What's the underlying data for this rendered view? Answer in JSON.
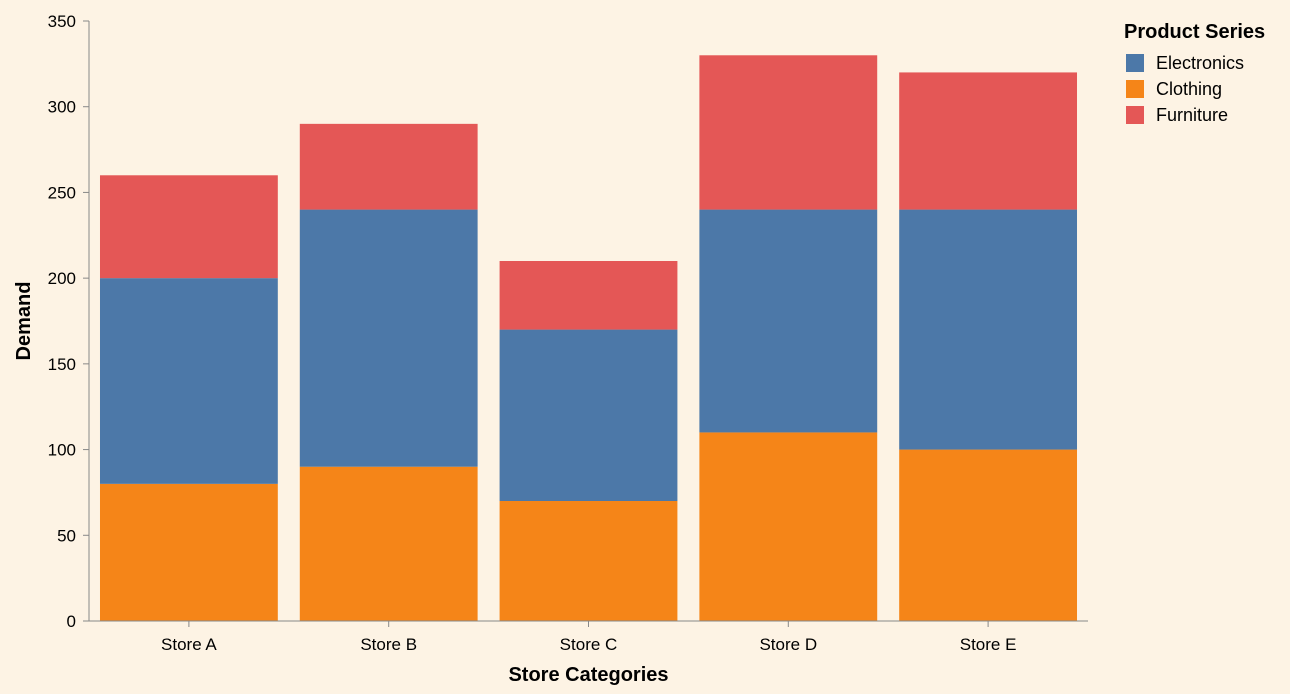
{
  "chart_data": {
    "type": "bar",
    "stacked": true,
    "categories": [
      "Store A",
      "Store B",
      "Store C",
      "Store D",
      "Store E"
    ],
    "series": [
      {
        "name": "Clothing",
        "color": "#f58518",
        "values": [
          80,
          90,
          70,
          110,
          100
        ]
      },
      {
        "name": "Electronics",
        "color": "#4c78a8",
        "values": [
          120,
          150,
          100,
          130,
          140
        ]
      },
      {
        "name": "Furniture",
        "color": "#e45756",
        "values": [
          60,
          50,
          40,
          90,
          80
        ]
      }
    ],
    "xlabel": "Store Categories",
    "ylabel": "Demand",
    "ylim": [
      0,
      350
    ],
    "yticks": [
      0,
      50,
      100,
      150,
      200,
      250,
      300,
      350
    ],
    "grid": false,
    "legend": {
      "title": "Product Series",
      "placement": "top-right",
      "entries": [
        "Electronics",
        "Clothing",
        "Furniture"
      ]
    }
  }
}
